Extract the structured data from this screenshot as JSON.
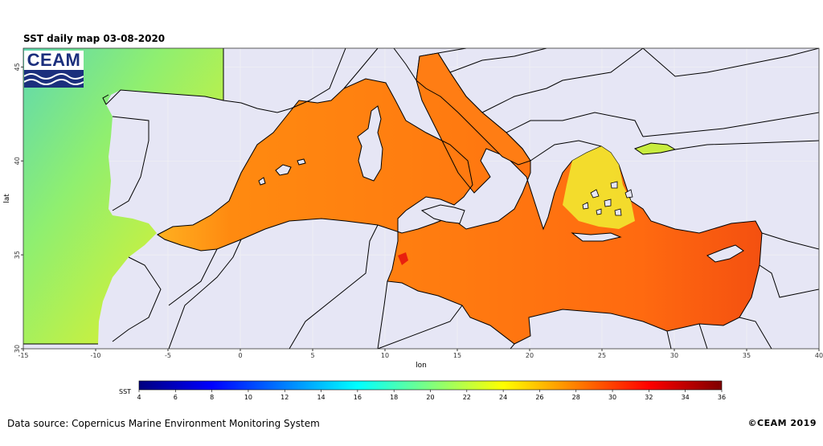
{
  "title": "SST daily map 03-08-2020",
  "logo_text": "CEAM",
  "axes": {
    "xlabel": "lon",
    "ylabel": "lat",
    "xlim": [
      -15,
      40
    ],
    "ylim": [
      30,
      46
    ],
    "x_ticks": [
      -15,
      -10,
      -5,
      0,
      5,
      10,
      15,
      20,
      25,
      30,
      35,
      40
    ],
    "y_ticks": [
      30,
      35,
      40,
      45
    ]
  },
  "colorbar": {
    "label": "SST",
    "min": 4,
    "max": 36,
    "ticks": [
      4,
      6,
      8,
      10,
      12,
      14,
      16,
      18,
      20,
      22,
      24,
      26,
      28,
      30,
      32,
      34,
      36
    ],
    "colors": [
      "#00007f",
      "#0000ff",
      "#007fff",
      "#00ffff",
      "#7fff7f",
      "#ffff00",
      "#ff7f00",
      "#ff0000",
      "#7f0000"
    ]
  },
  "colors": {
    "land": "#e6e6f5",
    "atlantic_cool": "#6fe0a0",
    "med_warm": "#ff6a10",
    "med_hot": "#f04a10"
  },
  "source": "Data source: Copernicus Marine Environment Monitoring System",
  "copyright": "©CEAM 2019"
}
